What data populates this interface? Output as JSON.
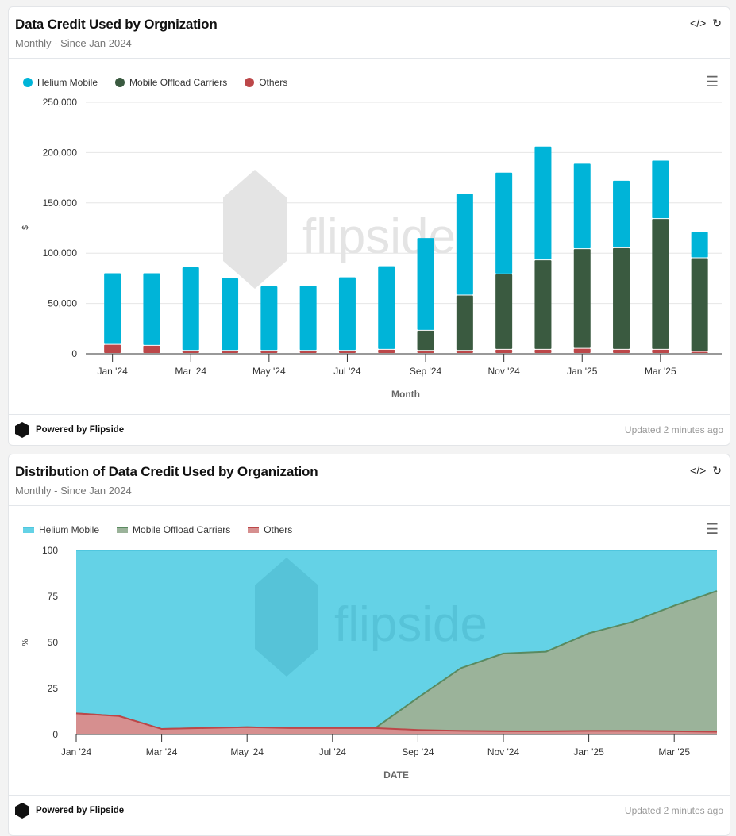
{
  "cards": [
    {
      "title": "Data Credit Used by Orgnization",
      "subtitle": "Monthly - Since Jan 2024",
      "icons": [
        "code-icon",
        "refresh-icon",
        "menu-icon"
      ],
      "powered_by": "Powered by Flipside",
      "updated": "Updated 2 minutes ago",
      "watermark": "flipside"
    },
    {
      "title": "Distribution of Data Credit Used by Organization",
      "subtitle": "Monthly - Since Jan 2024",
      "icons": [
        "code-icon",
        "refresh-icon",
        "menu-icon"
      ],
      "powered_by": "Powered by Flipside",
      "updated": "Updated 2 minutes ago",
      "watermark": "flipside"
    }
  ],
  "chart_data": [
    {
      "type": "bar",
      "stacked": true,
      "xlabel": "Month",
      "ylabel": "$",
      "ylim": [
        0,
        250000
      ],
      "yticks": [
        "0",
        "50,000",
        "100,000",
        "150,000",
        "200,000",
        "250,000"
      ],
      "grid": true,
      "legend_placement": "top-left",
      "categories": [
        "Jan '24",
        "Feb '24",
        "Mar '24",
        "Apr '24",
        "May '24",
        "Jun '24",
        "Jul '24",
        "Aug '24",
        "Sep '24",
        "Oct '24",
        "Nov '24",
        "Dec '24",
        "Jan '25",
        "Feb '25",
        "Mar '25",
        "Apr '25"
      ],
      "xtick_labels": [
        "Jan '24",
        "Mar '24",
        "May '24",
        "Jul '24",
        "Sep '24",
        "Nov '24",
        "Jan '25",
        "Mar '25"
      ],
      "series": [
        {
          "name": "Others",
          "color": "#bc4749",
          "values": [
            9000,
            8000,
            3000,
            3000,
            3000,
            3000,
            3000,
            4000,
            3000,
            3000,
            4000,
            4000,
            5000,
            4000,
            4000,
            2000
          ]
        },
        {
          "name": "Mobile Offload Carriers",
          "color": "#3a5a40",
          "values": [
            0,
            0,
            0,
            0,
            0,
            0,
            0,
            0,
            20000,
            55000,
            75000,
            89000,
            99000,
            101000,
            130000,
            93000
          ]
        },
        {
          "name": "Helium Mobile",
          "color": "#00b4d8",
          "values": [
            71000,
            72000,
            83000,
            72000,
            64000,
            64500,
            73000,
            83000,
            92000,
            101000,
            101000,
            113000,
            85000,
            67000,
            58000,
            26000
          ]
        }
      ],
      "legend_order": [
        "Helium Mobile",
        "Mobile Offload Carriers",
        "Others"
      ]
    },
    {
      "type": "area",
      "stacked": "percent",
      "xlabel": "DATE",
      "ylabel": "%",
      "ylim": [
        0,
        100
      ],
      "yticks": [
        "0",
        "25",
        "50",
        "75",
        "100"
      ],
      "grid": true,
      "legend_placement": "top-left",
      "categories": [
        "Jan '24",
        "Feb '24",
        "Mar '24",
        "Apr '24",
        "May '24",
        "Jun '24",
        "Jul '24",
        "Aug '24",
        "Sep '24",
        "Oct '24",
        "Nov '24",
        "Dec '24",
        "Jan '25",
        "Feb '25",
        "Mar '25",
        "Apr '25"
      ],
      "xtick_labels": [
        "Jan '24",
        "Mar '24",
        "May '24",
        "Jul '24",
        "Sep '24",
        "Nov '24",
        "Jan '25",
        "Mar '25"
      ],
      "series": [
        {
          "name": "Others",
          "color": "#bc4749",
          "fill": "#d68f8f",
          "values": [
            11.5,
            10,
            3,
            3.5,
            4,
            3.5,
            3.5,
            3.5,
            2.5,
            2,
            1.8,
            1.8,
            2,
            2,
            1.8,
            1.5
          ]
        },
        {
          "name": "Mobile Offload Carriers",
          "color": "#5a8a60",
          "fill": "#9bb39a",
          "values": [
            0,
            0,
            0,
            0,
            0,
            0,
            0,
            0,
            17.5,
            34,
            42.2,
            43.2,
            53,
            59,
            68.2,
            76.5
          ]
        },
        {
          "name": "Helium Mobile",
          "color": "#4fc6de",
          "fill": "#64d2e6",
          "values": [
            88.5,
            90,
            97,
            96.5,
            96,
            96.5,
            96.5,
            96.5,
            80,
            64,
            56,
            55,
            45,
            39,
            30,
            22
          ]
        }
      ],
      "legend_order": [
        "Helium Mobile",
        "Mobile Offload Carriers",
        "Others"
      ]
    }
  ]
}
